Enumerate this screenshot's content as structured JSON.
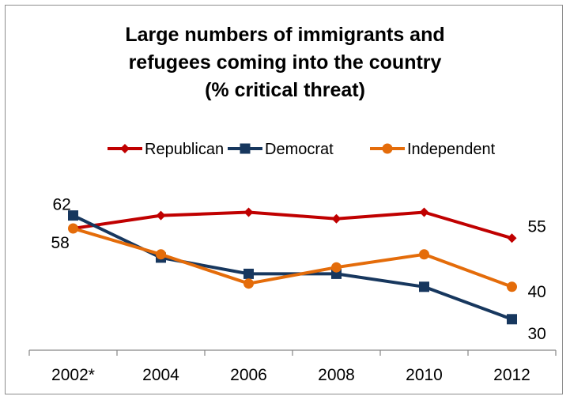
{
  "chart_data": {
    "type": "line",
    "title_lines": [
      "Large numbers of immigrants and",
      "refugees coming into the country",
      "(% critical threat)"
    ],
    "categories": [
      "2002*",
      "2004",
      "2006",
      "2008",
      "2010",
      "2012"
    ],
    "series": [
      {
        "name": "Republican",
        "color": "#c00000",
        "marker": "diamond",
        "values": [
          58,
          62,
          63,
          61,
          63,
          55
        ]
      },
      {
        "name": "Democrat",
        "color": "#17375e",
        "marker": "square",
        "values": [
          62,
          49,
          44,
          44,
          40,
          30
        ]
      },
      {
        "name": "Independent",
        "color": "#e46c0a",
        "marker": "circle",
        "values": [
          58,
          50,
          41,
          46,
          50,
          40
        ]
      }
    ],
    "data_labels": [
      {
        "series": "Democrat",
        "index": 0,
        "text": "62"
      },
      {
        "series": "Independent",
        "index": 0,
        "text": "58"
      },
      {
        "series": "Republican",
        "index": 5,
        "text": "55"
      },
      {
        "series": "Independent",
        "index": 5,
        "text": "40"
      },
      {
        "series": "Democrat",
        "index": 5,
        "text": "30"
      }
    ],
    "legend_position": "top",
    "grid": false
  }
}
